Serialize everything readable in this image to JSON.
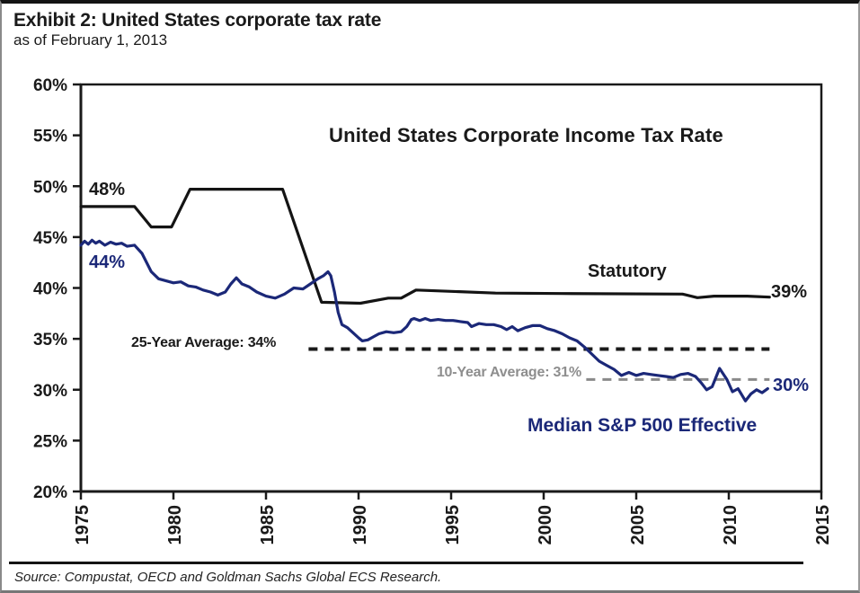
{
  "header": {
    "title": "Exhibit 2: United States corporate tax rate",
    "subtitle": "as of February 1, 2013"
  },
  "source": "Source: Compustat, OECD and Goldman Sachs Global ECS Research.",
  "colors": {
    "statutory_line": "#141414",
    "effective_line": "#1b2878",
    "avg25_line": "#1a1a1a",
    "avg10_line": "#8a8a8a",
    "avg10_text": "#8e8e8e",
    "axis": "#1a1a1a",
    "background": "#ffffff"
  },
  "chart_data": {
    "type": "line",
    "title": "United States Corporate Income Tax Rate",
    "xlabel": "",
    "ylabel": "",
    "xlim": [
      1975,
      2015
    ],
    "ylim": [
      20,
      60
    ],
    "grid": false,
    "x_ticks": [
      1975,
      1980,
      1985,
      1990,
      1995,
      2000,
      2005,
      2010,
      2015
    ],
    "y_ticks": [
      "60%",
      "55%",
      "50%",
      "45%",
      "40%",
      "35%",
      "30%",
      "25%",
      "20%"
    ],
    "labels": {
      "statutory_start": "48%",
      "effective_start": "44%",
      "statutory_end": "39%",
      "effective_end": "30%"
    },
    "series": [
      {
        "name": "Statutory",
        "color": "#141414",
        "points": [
          [
            1975.0,
            48
          ],
          [
            1977.9,
            48
          ],
          [
            1978.8,
            46
          ],
          [
            1979.9,
            46
          ],
          [
            1980.9,
            49.7
          ],
          [
            1985.9,
            49.7
          ],
          [
            1988.0,
            38.6
          ],
          [
            1990.1,
            38.5
          ],
          [
            1991.6,
            39.0
          ],
          [
            1992.3,
            39.0
          ],
          [
            1993.1,
            39.8
          ],
          [
            1997.4,
            39.5
          ],
          [
            2001.0,
            39.45
          ],
          [
            2007.5,
            39.4
          ],
          [
            2008.3,
            39.05
          ],
          [
            2009.2,
            39.2
          ],
          [
            2011.0,
            39.2
          ],
          [
            2012.2,
            39.1
          ]
        ]
      },
      {
        "name": "Median S&P 500 Effective",
        "color": "#1b2878",
        "points": [
          [
            1975.0,
            44.2
          ],
          [
            1975.2,
            44.6
          ],
          [
            1975.4,
            44.3
          ],
          [
            1975.6,
            44.7
          ],
          [
            1975.8,
            44.4
          ],
          [
            1976.0,
            44.6
          ],
          [
            1976.3,
            44.2
          ],
          [
            1976.6,
            44.5
          ],
          [
            1976.9,
            44.3
          ],
          [
            1977.2,
            44.4
          ],
          [
            1977.5,
            44.1
          ],
          [
            1977.9,
            44.2
          ],
          [
            1978.3,
            43.4
          ],
          [
            1978.8,
            41.6
          ],
          [
            1979.2,
            40.9
          ],
          [
            1979.6,
            40.7
          ],
          [
            1980.0,
            40.5
          ],
          [
            1980.4,
            40.6
          ],
          [
            1980.8,
            40.2
          ],
          [
            1981.2,
            40.1
          ],
          [
            1981.6,
            39.8
          ],
          [
            1982.0,
            39.6
          ],
          [
            1982.4,
            39.3
          ],
          [
            1982.8,
            39.6
          ],
          [
            1983.1,
            40.4
          ],
          [
            1983.4,
            41.0
          ],
          [
            1983.7,
            40.4
          ],
          [
            1984.1,
            40.1
          ],
          [
            1984.5,
            39.6
          ],
          [
            1985.0,
            39.2
          ],
          [
            1985.5,
            39.0
          ],
          [
            1986.0,
            39.4
          ],
          [
            1986.5,
            40.0
          ],
          [
            1987.0,
            39.9
          ],
          [
            1987.4,
            40.4
          ],
          [
            1987.8,
            40.9
          ],
          [
            1988.1,
            41.2
          ],
          [
            1988.35,
            41.6
          ],
          [
            1988.5,
            41.2
          ],
          [
            1988.7,
            39.6
          ],
          [
            1988.9,
            37.6
          ],
          [
            1989.1,
            36.4
          ],
          [
            1989.4,
            36.1
          ],
          [
            1989.7,
            35.6
          ],
          [
            1990.0,
            35.1
          ],
          [
            1990.2,
            34.8
          ],
          [
            1990.5,
            34.9
          ],
          [
            1990.8,
            35.2
          ],
          [
            1991.1,
            35.5
          ],
          [
            1991.5,
            35.7
          ],
          [
            1991.9,
            35.6
          ],
          [
            1992.3,
            35.7
          ],
          [
            1992.6,
            36.2
          ],
          [
            1992.85,
            36.9
          ],
          [
            1993.0,
            37.0
          ],
          [
            1993.3,
            36.8
          ],
          [
            1993.6,
            37.0
          ],
          [
            1993.9,
            36.8
          ],
          [
            1994.3,
            36.9
          ],
          [
            1994.7,
            36.8
          ],
          [
            1995.1,
            36.8
          ],
          [
            1995.5,
            36.7
          ],
          [
            1995.9,
            36.6
          ],
          [
            1996.1,
            36.2
          ],
          [
            1996.5,
            36.5
          ],
          [
            1996.9,
            36.4
          ],
          [
            1997.3,
            36.4
          ],
          [
            1997.7,
            36.2
          ],
          [
            1998.0,
            35.9
          ],
          [
            1998.3,
            36.2
          ],
          [
            1998.6,
            35.8
          ],
          [
            1999.0,
            36.1
          ],
          [
            1999.4,
            36.3
          ],
          [
            1999.8,
            36.3
          ],
          [
            2000.2,
            36.0
          ],
          [
            2000.6,
            35.8
          ],
          [
            2001.0,
            35.5
          ],
          [
            2001.4,
            35.1
          ],
          [
            2001.8,
            34.8
          ],
          [
            2002.2,
            34.2
          ],
          [
            2002.6,
            33.5
          ],
          [
            2003.0,
            32.8
          ],
          [
            2003.4,
            32.4
          ],
          [
            2003.8,
            32.0
          ],
          [
            2004.2,
            31.4
          ],
          [
            2004.6,
            31.7
          ],
          [
            2005.0,
            31.4
          ],
          [
            2005.4,
            31.6
          ],
          [
            2005.8,
            31.5
          ],
          [
            2006.2,
            31.4
          ],
          [
            2006.6,
            31.3
          ],
          [
            2007.0,
            31.2
          ],
          [
            2007.4,
            31.5
          ],
          [
            2007.8,
            31.6
          ],
          [
            2008.2,
            31.3
          ],
          [
            2008.5,
            30.7
          ],
          [
            2008.8,
            30.0
          ],
          [
            2009.1,
            30.3
          ],
          [
            2009.5,
            32.1
          ],
          [
            2009.9,
            31.0
          ],
          [
            2010.2,
            29.8
          ],
          [
            2010.5,
            30.1
          ],
          [
            2010.9,
            28.9
          ],
          [
            2011.2,
            29.6
          ],
          [
            2011.5,
            30.0
          ],
          [
            2011.8,
            29.7
          ],
          [
            2012.1,
            30.1
          ]
        ]
      }
    ],
    "reference_lines": [
      {
        "label": "25-Year Average: 34%",
        "value": 34,
        "from": 1987.3,
        "to": 2012.2,
        "color": "#1a1a1a"
      },
      {
        "label": "10-Year Average: 31%",
        "value": 31,
        "from": 2002.3,
        "to": 2012.2,
        "color": "#8a8a8a"
      }
    ]
  }
}
